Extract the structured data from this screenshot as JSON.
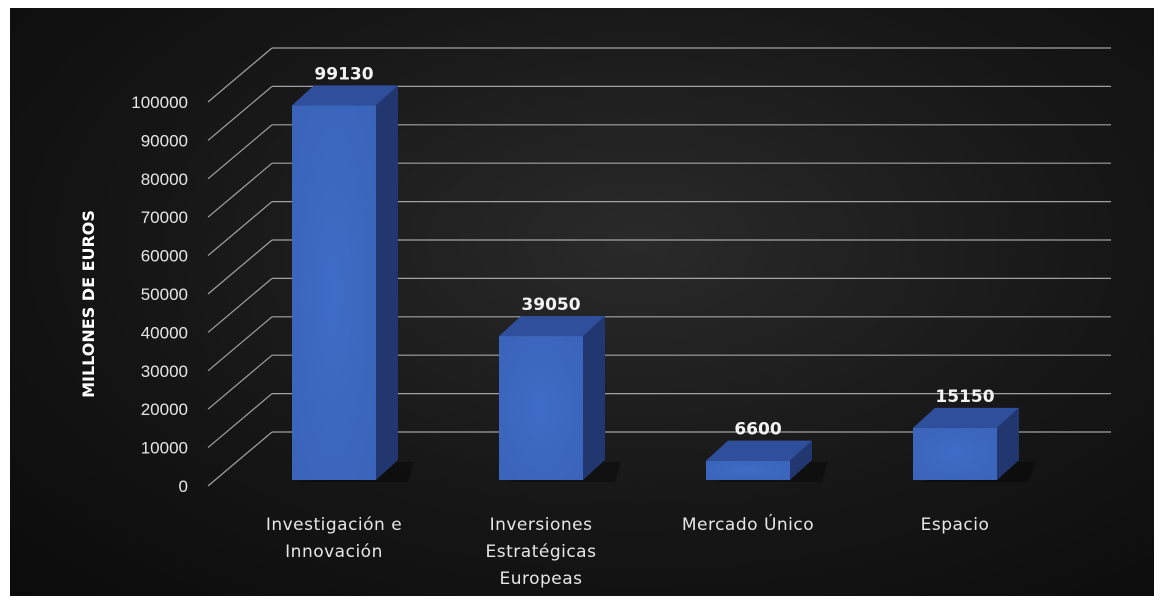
{
  "chart_data": {
    "type": "bar",
    "categories": [
      [
        "Investigación e",
        "Innovación"
      ],
      [
        "Inversiones",
        "Estratégicas",
        "Europeas"
      ],
      [
        "Mercado Único"
      ],
      [
        "Espacio"
      ]
    ],
    "values": [
      99130,
      39050,
      6600,
      15150
    ],
    "data_labels": [
      "99130",
      "39050",
      "6600",
      "15150"
    ],
    "ylabel": "MILLONES DE EUROS",
    "xlabel": "",
    "ylim": [
      0,
      100000
    ],
    "yticks": [
      0,
      10000,
      20000,
      30000,
      40000,
      50000,
      60000,
      70000,
      80000,
      90000,
      100000
    ],
    "grid": true,
    "legend": "none",
    "style": "3d-column",
    "colors": {
      "bar_front": "#3a63b8",
      "bar_side": "#22376f",
      "bar_top": "#2f4f9c",
      "background": "#141414",
      "gridline": "#d0d0d0",
      "text": "#e6e6e6"
    }
  }
}
